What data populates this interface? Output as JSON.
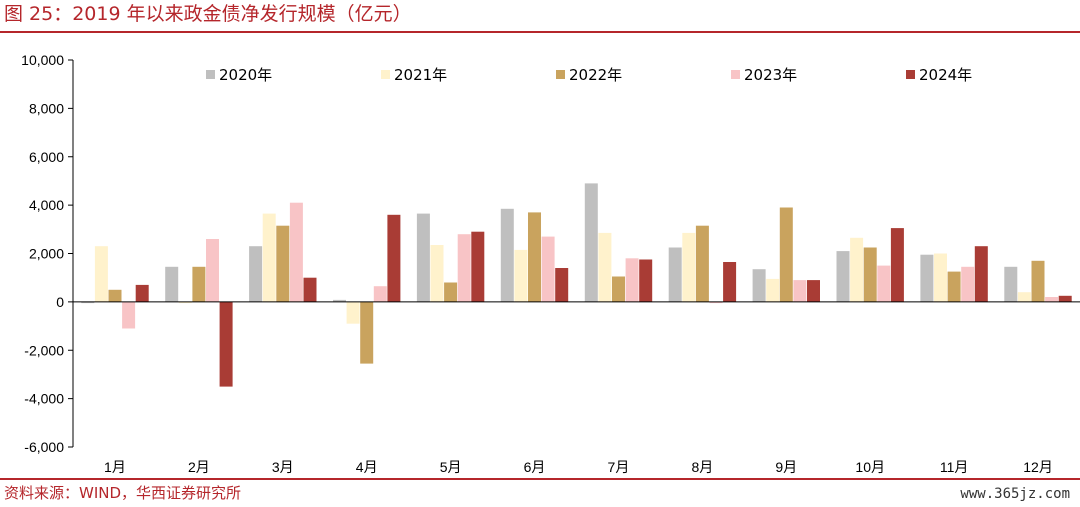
{
  "header": {
    "title": "图 25：2019 年以来政金债净发行规模（亿元）"
  },
  "footer": {
    "source": "资料来源：WIND，华西证券研究所",
    "watermark": "www.365jz.com"
  },
  "colors": {
    "accent": "#b5262b",
    "series": [
      "#bfbfbf",
      "#fff2cc",
      "#c9a35e",
      "#f8c4c6",
      "#a93c35"
    ]
  },
  "chart_data": {
    "type": "bar",
    "title": "2019 年以来政金债净发行规模（亿元）",
    "xlabel": "",
    "ylabel": "",
    "ylim": [
      -6000,
      10000
    ],
    "yticks": [
      -6000,
      -4000,
      -2000,
      0,
      2000,
      4000,
      6000,
      8000,
      10000
    ],
    "ytick_labels": [
      "-6,000",
      "-4,000",
      "-2,000",
      "0",
      "2,000",
      "4,000",
      "6,000",
      "8,000",
      "10,000"
    ],
    "grid": false,
    "legend_position": "top",
    "categories": [
      "1月",
      "2月",
      "3月",
      "4月",
      "5月",
      "6月",
      "7月",
      "8月",
      "9月",
      "10月",
      "11月",
      "12月"
    ],
    "series": [
      {
        "name": "2020年",
        "values": [
          -50,
          1450,
          2300,
          80,
          3650,
          3850,
          4900,
          2250,
          1350,
          2100,
          1950,
          1450
        ]
      },
      {
        "name": "2021年",
        "values": [
          2300,
          -50,
          3650,
          -900,
          2350,
          2150,
          2850,
          2850,
          950,
          2650,
          2000,
          400
        ]
      },
      {
        "name": "2022年",
        "values": [
          500,
          1450,
          3150,
          -2550,
          800,
          3700,
          1050,
          3150,
          3900,
          2250,
          1250,
          1700
        ]
      },
      {
        "name": "2023年",
        "values": [
          -1100,
          2600,
          4100,
          650,
          2800,
          2700,
          1800,
          -50,
          900,
          1500,
          1450,
          200
        ]
      },
      {
        "name": "2024年",
        "values": [
          700,
          -3500,
          1000,
          3600,
          2900,
          1400,
          1750,
          1650,
          900,
          3050,
          2300,
          250
        ]
      }
    ]
  }
}
